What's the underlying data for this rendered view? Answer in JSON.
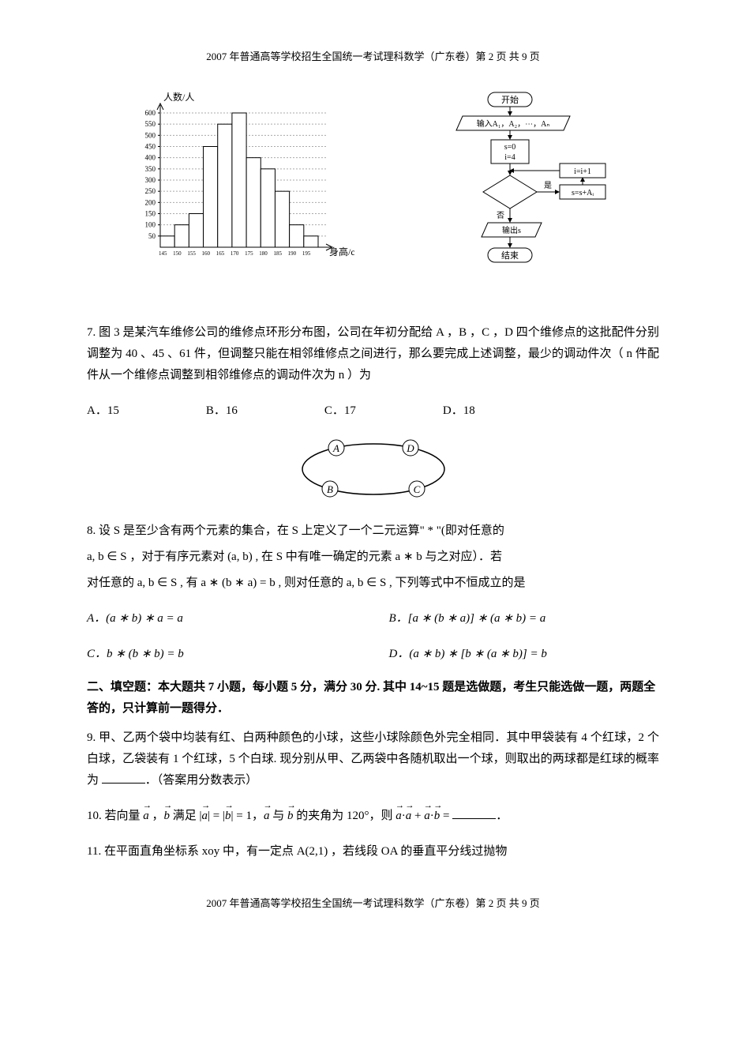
{
  "header": "2007 年普通高等学校招生全国统一考试理科数学（广东卷）第 2 页 共 9 页",
  "footer": "2007 年普通高等学校招生全国统一考试理科数学（广东卷）第 2 页 共 9 页",
  "histogram": {
    "ylabel": "人数/人",
    "xlabel": "身高/cm",
    "y_ticks": [
      50,
      100,
      150,
      200,
      250,
      300,
      350,
      400,
      450,
      500,
      550,
      600
    ],
    "x_ticks": [
      "145",
      "150",
      "155",
      "160",
      "165",
      "170",
      "175",
      "180",
      "185",
      "190",
      "195"
    ],
    "bar_values": [
      50,
      100,
      150,
      450,
      550,
      600,
      400,
      350,
      250,
      100,
      50
    ],
    "y_max": 600,
    "bar_color": "#ffffff",
    "axis_color": "#000000",
    "grid_color": "#cccccc"
  },
  "flowchart": {
    "nodes": {
      "start": "开始",
      "input": "输入A₁，A₂，⋯，Aₙ",
      "init": "s=0\ni=4",
      "decision_yes": "是",
      "decision_no": "否",
      "inc": "i=i+1",
      "accum": "s=s+Aᵢ",
      "output": "输出s",
      "end": "结束"
    },
    "colors": {
      "stroke": "#000000",
      "fill": "#ffffff"
    }
  },
  "q7": {
    "text": "7. 图 3 是某汽车维修公司的维修点环形分布图，公司在年初分配给 A ，B ，C ，D 四个维修点的这批配件分别调整为 40 、45 、61 件，但调整只能在相邻维修点之间进行，那么要完成上述调整，最少的调动件次（ n 件配件从一个维修点调整到相邻维修点的调动件次为 n ）为",
    "options": {
      "A": "A．15",
      "B": "B．16",
      "C": "C．17",
      "D": "D．18"
    }
  },
  "ring": {
    "labels": [
      "A",
      "B",
      "C",
      "D"
    ]
  },
  "q8": {
    "stem_part1": "8. 设 S 是至少含有两个元素的集合，在 S 上定义了一个二元运算\" * \"(即对任意的",
    "stem_part2": "a, b ∈ S ，对于有序元素对 (a, b) , 在 S 中有唯一确定的元素 a ∗ b 与之对应）．若",
    "stem_part3": "对任意的 a, b ∈ S , 有 a ∗ (b ∗ a) = b , 则对任意的 a, b ∈ S , 下列等式中不恒成立的是",
    "options": {
      "A": "A．(a ∗ b) ∗ a = a",
      "B": "B．[a ∗ (b ∗ a)] ∗ (a ∗ b) = a",
      "C": "C．b ∗ (b ∗ b) = b",
      "D": "D．(a ∗ b) ∗ [b ∗ (a ∗ b)] = b"
    }
  },
  "section2": "二、填空题：本大题共 7 小题，每小题 5 分，满分 30 分. 其中 14~15 题是选做题，考生只能选做一题，两题全答的，只计算前一题得分．",
  "q9": "9. 甲、乙两个袋中均装有红、白两种颜色的小球，这些小球除颜色外完全相同．其中甲袋装有 4 个红球，2 个白球，乙袋装有 1 个红球，5 个白球. 现分别从甲、乙两袋中各随机取出一个球，则取出的两球都是红球的概率为 ______．（答案用分数表示）",
  "q10": {
    "pre": "10. 若向量",
    "mid1": "，",
    "mid2": "满足 |",
    "mid3": "| = |",
    "mid4": "| = 1，",
    "mid5": "与",
    "mid6": "的夹角为 120°，则",
    "mid7": "·",
    "mid8": " + ",
    "mid9": "·",
    "mid10": " = ______．"
  },
  "q11": "11. 在平面直角坐标系 xoy 中，有一定点 A(2,1) ，若线段 OA 的垂直平分线过抛物"
}
